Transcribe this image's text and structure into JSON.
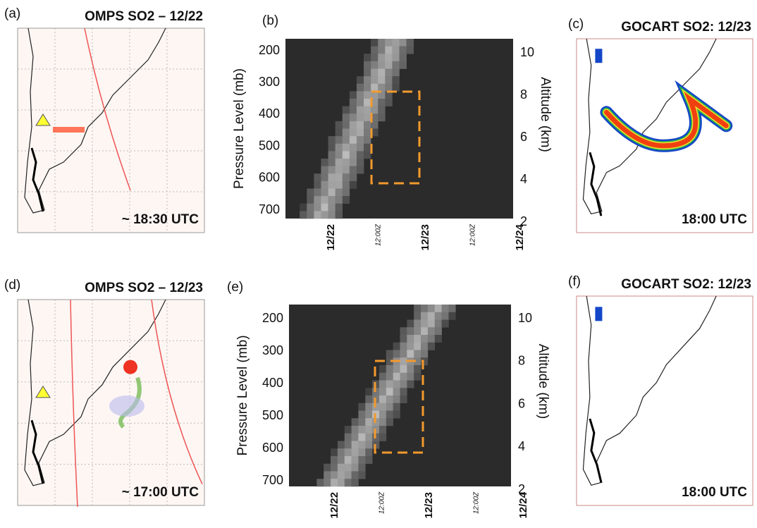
{
  "panels": [
    {
      "label": "(a)",
      "title": "OMPS SO2 – 12/22",
      "time": "~ 18:30 UTC"
    },
    {
      "label": "(b)",
      "y_label": "Pressure Level (mb)",
      "y2_label": "Altitude (km)",
      "yticks": [
        200,
        300,
        400,
        500,
        600,
        700
      ],
      "y2ticks": [
        10,
        8,
        6,
        4,
        2
      ],
      "xticks": [
        "12/22",
        "12:00Z",
        "12/23",
        "12:00Z",
        "12/24"
      ]
    },
    {
      "label": "(c)",
      "title": "GOCART SO2: 12/23",
      "time": "18:00 UTC"
    },
    {
      "label": "(d)",
      "title": "OMPS SO2 – 12/23",
      "time": "~ 17:00 UTC"
    },
    {
      "label": "(e)",
      "y_label": "Pressure Level (mb)",
      "y2_label": "Altitude (km)",
      "yticks": [
        200,
        300,
        400,
        500,
        600,
        700
      ],
      "y2ticks": [
        10,
        8,
        6,
        4,
        2
      ],
      "xticks": [
        "12/22",
        "12:00Z",
        "12/23",
        "12:00Z",
        "12/24"
      ]
    },
    {
      "label": "(f)",
      "title": "GOCART SO2: 12/23",
      "time": "18:00 UTC"
    }
  ]
}
